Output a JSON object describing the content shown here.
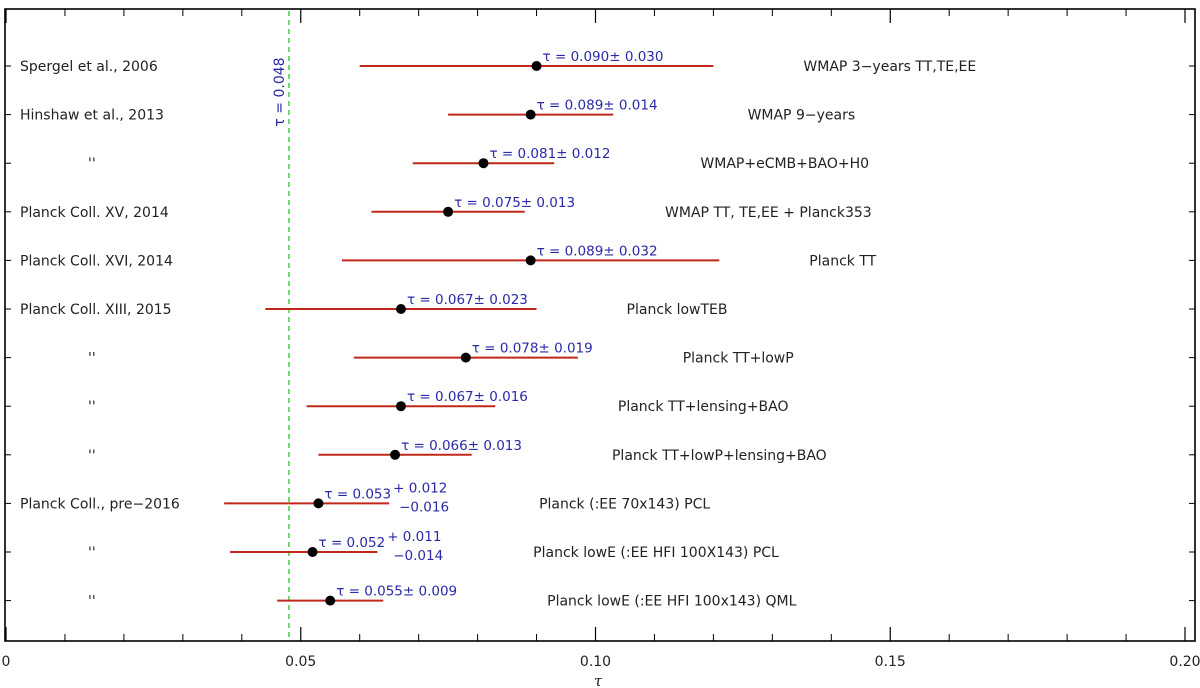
{
  "chart_data": {
    "type": "scatter",
    "title": "",
    "xlabel": "τ",
    "ylabel": "",
    "xlim": [
      0,
      0.2
    ],
    "grid": false,
    "major_ticks": [
      0,
      0.05,
      0.1,
      0.15,
      0.2
    ],
    "tick_labels": [
      "0",
      "0.05",
      "0.10",
      "0.15",
      "0.20"
    ],
    "minor_ticks": [
      0.01,
      0.02,
      0.03,
      0.04,
      0.06,
      0.07,
      0.08,
      0.09,
      0.11,
      0.12,
      0.13,
      0.14,
      0.16,
      0.17,
      0.18,
      0.19
    ],
    "reference_line": {
      "x": 0.048,
      "label": "τ = 0.048",
      "color": "#33cc33"
    },
    "colors": {
      "errorbar": "#c0281a",
      "point": "#000000",
      "value_text": "#2a2aa8",
      "label_text": "#222222"
    },
    "rows": [
      {
        "reference": "Spergel et al., 2006",
        "tau": 0.09,
        "lo": 0.06,
        "hi": 0.12,
        "value_text": "τ = 0.090± 0.030",
        "measurement": "WMAP 3−years TT,TE,EE"
      },
      {
        "reference": "Hinshaw et al., 2013",
        "tau": 0.089,
        "lo": 0.075,
        "hi": 0.103,
        "value_text": "τ = 0.089± 0.014",
        "measurement": "WMAP 9−years"
      },
      {
        "reference": "''",
        "tau": 0.081,
        "lo": 0.069,
        "hi": 0.093,
        "value_text": "τ = 0.081± 0.012",
        "measurement": "WMAP+eCMB+BAO+H0"
      },
      {
        "reference": "Planck Coll. XV, 2014",
        "tau": 0.075,
        "lo": 0.062,
        "hi": 0.088,
        "value_text": "τ = 0.075± 0.013",
        "measurement": "WMAP TT, TE,EE + Planck353"
      },
      {
        "reference": "Planck Coll. XVI, 2014",
        "tau": 0.089,
        "lo": 0.057,
        "hi": 0.121,
        "value_text": "τ = 0.089± 0.032",
        "measurement": "Planck TT"
      },
      {
        "reference": "Planck Coll. XIII, 2015",
        "tau": 0.067,
        "lo": 0.044,
        "hi": 0.09,
        "value_text": "τ = 0.067± 0.023",
        "measurement": "Planck lowTEB"
      },
      {
        "reference": "''",
        "tau": 0.078,
        "lo": 0.059,
        "hi": 0.097,
        "value_text": "τ = 0.078± 0.019",
        "measurement": "Planck TT+lowP"
      },
      {
        "reference": "''",
        "tau": 0.067,
        "lo": 0.051,
        "hi": 0.083,
        "value_text": "τ = 0.067± 0.016",
        "measurement": "Planck TT+lensing+BAO"
      },
      {
        "reference": "''",
        "tau": 0.066,
        "lo": 0.053,
        "hi": 0.079,
        "value_text": "τ = 0.066± 0.013",
        "measurement": "Planck TT+lowP+lensing+BAO"
      },
      {
        "reference": "Planck Coll., pre−2016",
        "tau": 0.053,
        "lo": 0.037,
        "hi": 0.065,
        "value_text": "τ = 0.053",
        "err_plus": "+ 0.012",
        "err_minus": "−0.016",
        "measurement": "Planck (:EE 70x143) PCL"
      },
      {
        "reference": "''",
        "tau": 0.052,
        "lo": 0.038,
        "hi": 0.063,
        "value_text": "τ = 0.052",
        "err_plus": "+ 0.011",
        "err_minus": "−0.014",
        "measurement": "Planck lowE (:EE HFI 100X143) PCL"
      },
      {
        "reference": "''",
        "tau": 0.055,
        "lo": 0.046,
        "hi": 0.064,
        "value_text": "τ = 0.055± 0.009",
        "measurement": "Planck lowE (:EE HFI 100x143) QML"
      }
    ]
  }
}
